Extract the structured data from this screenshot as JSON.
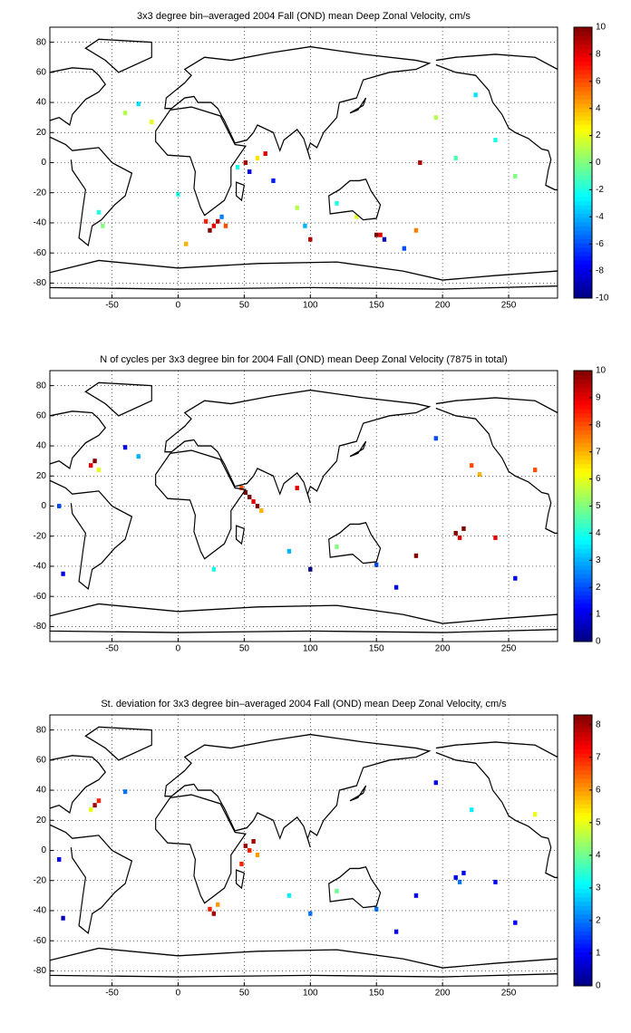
{
  "chart_data": [
    {
      "type": "heatmap",
      "colormap": "jet",
      "grid": true,
      "title": "3x3 degree bin–averaged 2004 Fall (OND) mean Deep Zonal Velocity, cm/s",
      "xlim": [
        -97,
        287
      ],
      "ylim": [
        -90,
        90
      ],
      "xticks": [
        -50,
        0,
        50,
        100,
        150,
        200,
        250
      ],
      "yticks": [
        -80,
        -60,
        -40,
        -20,
        0,
        20,
        40,
        60,
        80
      ],
      "clim": [
        -10,
        10
      ],
      "cticks": [
        -10,
        -8,
        -6,
        -4,
        -2,
        0,
        2,
        4,
        6,
        8,
        10
      ],
      "cells": {
        "lon": [
          30,
          27,
          24,
          21,
          33,
          36,
          45,
          51,
          54,
          60,
          72,
          90,
          96,
          150,
          153,
          156,
          180,
          183,
          210,
          240,
          -60,
          -57,
          -40,
          -30,
          -20,
          195,
          225,
          255,
          120,
          135,
          0,
          6,
          100,
          66,
          171
        ],
        "lat": [
          -39,
          -42,
          -45,
          -39,
          -36,
          -42,
          -3,
          0,
          -6,
          3,
          -12,
          -30,
          -42,
          -48,
          -48,
          -51,
          -45,
          0,
          3,
          15,
          -33,
          -42,
          33,
          39,
          27,
          30,
          45,
          -9,
          -27,
          -36,
          -21,
          -54,
          -51,
          6,
          -57
        ],
        "values": [
          9,
          8,
          10,
          7,
          -5,
          6,
          -2,
          9,
          -8,
          3,
          -7,
          1,
          -4,
          10,
          8,
          -9,
          5,
          9,
          -1,
          -2,
          -2,
          0,
          1,
          -3,
          2,
          1,
          -3,
          0,
          -2,
          2,
          -2,
          4,
          9,
          8,
          -6
        ]
      }
    },
    {
      "type": "heatmap",
      "colormap": "jet",
      "grid": true,
      "title": "N of cycles per 3x3 degree bin for 2004 Fall (OND) mean Deep Zonal Velocity (7875 in total)",
      "xlim": [
        -97,
        287
      ],
      "ylim": [
        -90,
        90
      ],
      "xticks": [
        -50,
        0,
        50,
        100,
        150,
        200,
        250
      ],
      "yticks": [
        -80,
        -60,
        -40,
        -20,
        0,
        20,
        40,
        60,
        80
      ],
      "clim": [
        0,
        10
      ],
      "cticks": [
        0,
        1,
        2,
        3,
        4,
        5,
        6,
        7,
        8,
        9,
        10
      ],
      "cells": {
        "lon": [
          51,
          54,
          57,
          60,
          48,
          63,
          210,
          213,
          216,
          222,
          228,
          -66,
          -63,
          -60,
          -90,
          -87,
          84,
          90,
          150,
          180,
          240,
          255,
          27,
          -30,
          -40,
          195,
          120,
          100,
          165,
          270
        ],
        "lat": [
          9,
          6,
          3,
          0,
          12,
          -3,
          -18,
          -21,
          -15,
          27,
          21,
          27,
          30,
          24,
          0,
          -45,
          -30,
          12,
          -39,
          -33,
          -21,
          -48,
          -42,
          33,
          39,
          45,
          -27,
          -42,
          -54,
          24
        ],
        "values": [
          10,
          10,
          9,
          10,
          8,
          7,
          10,
          9,
          10,
          8,
          7,
          9,
          10,
          6,
          2,
          1,
          3,
          9,
          2,
          10,
          9,
          1,
          4,
          3,
          1,
          2,
          5,
          0,
          1,
          8
        ]
      }
    },
    {
      "type": "heatmap",
      "colormap": "jet",
      "grid": true,
      "title": "St. deviation for 3x3 degree bin–averaged 2004 Fall (OND) mean Deep Zonal Velocity, cm/s",
      "xlim": [
        -97,
        287
      ],
      "ylim": [
        -90,
        90
      ],
      "xticks": [
        -50,
        0,
        50,
        100,
        150,
        200,
        250
      ],
      "yticks": [
        -80,
        -60,
        -40,
        -20,
        0,
        20,
        40,
        60,
        80
      ],
      "clim": [
        0,
        8.3
      ],
      "cticks": [
        0,
        1,
        2,
        3,
        4,
        5,
        6,
        7,
        8
      ],
      "cells": {
        "lon": [
          51,
          54,
          57,
          60,
          48,
          24,
          27,
          30,
          -63,
          -60,
          -66,
          210,
          213,
          216,
          222,
          180,
          150,
          240,
          255,
          -90,
          -87,
          84,
          100,
          120,
          165,
          195,
          -40,
          270
        ],
        "lat": [
          3,
          0,
          6,
          -3,
          -9,
          -39,
          -42,
          -36,
          30,
          33,
          27,
          -18,
          -21,
          -15,
          27,
          -30,
          -39,
          -21,
          -48,
          -6,
          -45,
          -30,
          -42,
          -27,
          -54,
          45,
          39,
          24
        ],
        "values": [
          8,
          7,
          8,
          6,
          7,
          7,
          8,
          6,
          8,
          7,
          5,
          1,
          2,
          1,
          3,
          1,
          2,
          1,
          1,
          1,
          0.5,
          3,
          2,
          4,
          1,
          1,
          2,
          5
        ]
      }
    }
  ]
}
